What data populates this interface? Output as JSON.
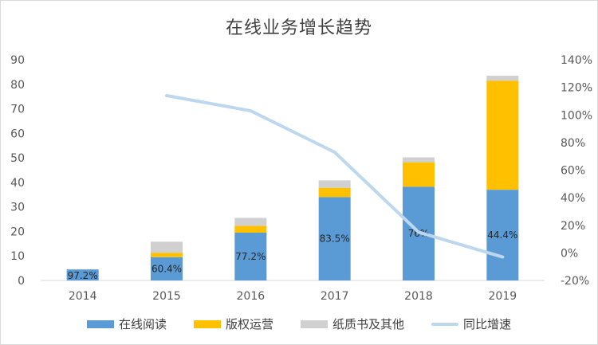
{
  "chart_data": {
    "type": "bar",
    "title": "在线业务增长趋势",
    "categories": [
      "2014",
      "2015",
      "2016",
      "2017",
      "2018",
      "2019"
    ],
    "series": [
      {
        "name": "在线阅读",
        "values": [
          4.5,
          9.5,
          19.5,
          34,
          38.2,
          37
        ],
        "color": "#5b9bd5"
      },
      {
        "name": "版权运营",
        "values": [
          0,
          1.8,
          2.8,
          3.8,
          10,
          44.5
        ],
        "color": "#ffc000"
      },
      {
        "name": "纸质书及其他",
        "values": [
          0,
          4.5,
          3.2,
          3,
          2,
          2
        ],
        "color": "#d0d0d0"
      }
    ],
    "line_series": {
      "name": "同比增速",
      "values": [
        null,
        114,
        103,
        73,
        15,
        -3
      ],
      "unit": "%",
      "color": "#bdd7ee",
      "axis": "right"
    },
    "data_labels": [
      "97.2%",
      "60.4%",
      "77.2%",
      "83.5%",
      "76%",
      "44.4%"
    ],
    "y_left": {
      "min": 0,
      "max": 90,
      "step": 10,
      "ticks": [
        "0",
        "10",
        "20",
        "30",
        "40",
        "50",
        "60",
        "70",
        "80",
        "90"
      ]
    },
    "y_right": {
      "min": -20,
      "max": 140,
      "step": 20,
      "ticks": [
        "-20%",
        "0%",
        "20%",
        "40%",
        "60%",
        "80%",
        "100%",
        "120%",
        "140%"
      ]
    },
    "grid": false,
    "legend_position": "bottom"
  }
}
